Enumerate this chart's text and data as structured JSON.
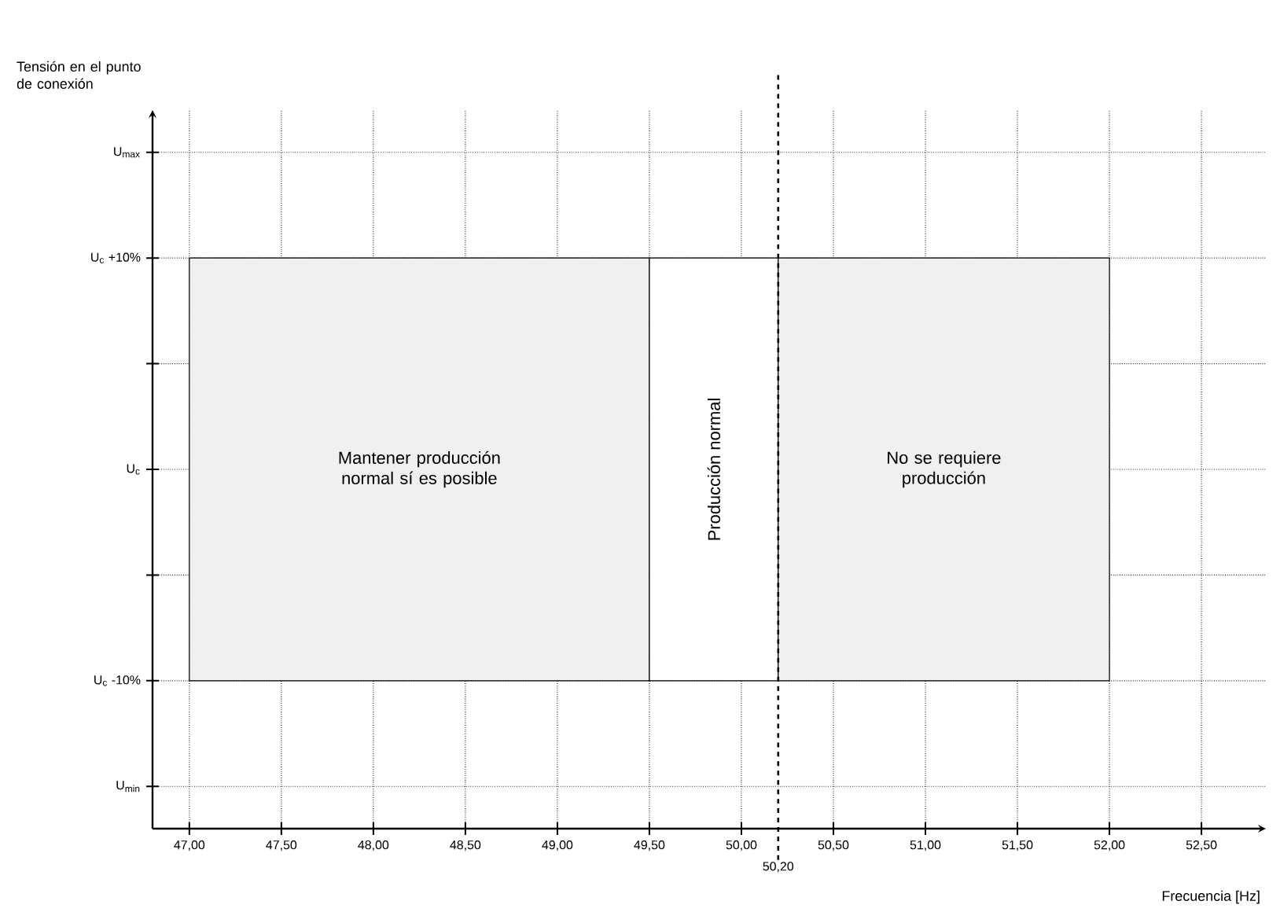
{
  "chart_data": {
    "type": "histogram",
    "xlabel": "Frecuencia [Hz]",
    "ylabel": "Tensión en el punto de conexión",
    "xlim": [
      46.8,
      52.85
    ],
    "ylim": [
      -17,
      17
    ],
    "xticks": [
      {
        "value": 47,
        "label": "47,00"
      },
      {
        "value": 47.5,
        "label": "47,50"
      },
      {
        "value": 48,
        "label": "48,00"
      },
      {
        "value": 48.5,
        "label": "48,50"
      },
      {
        "value": 49,
        "label": "49,00"
      },
      {
        "value": 49.5,
        "label": "49,50"
      },
      {
        "value": 50,
        "label": "50,00"
      },
      {
        "value": 50.5,
        "label": "50,50"
      },
      {
        "value": 51,
        "label": "51,00"
      },
      {
        "value": 51.5,
        "label": "51,50"
      },
      {
        "value": 52,
        "label": "52,00"
      },
      {
        "value": 52.5,
        "label": "52,50"
      }
    ],
    "yticks": [
      {
        "value": -15,
        "label": "U$_{min}$"
      },
      {
        "value": -10,
        "label": "U$_{c}$ -10%"
      },
      {
        "value": -5,
        "label": null
      },
      {
        "value": 0,
        "label": "U$_{c}$"
      },
      {
        "value": 5,
        "label": null
      },
      {
        "value": 10,
        "label": "U$_{c}$ +10%"
      },
      {
        "value": 15,
        "label": "U$_{max}$"
      }
    ],
    "grid": true,
    "bins": [
      47,
      49.5,
      50.2,
      52
    ],
    "values": [
      20,
      20,
      20
    ],
    "base": [
      -10,
      -10,
      -10
    ],
    "colors": [
      "#f0f0f0",
      "#ffffff",
      "#f0f0f0"
    ],
    "annotations": [
      "Mantener producción normal sí es posible",
      "Producción normal",
      "No se requiere producción"
    ],
    "ref_lines": [
      {
        "axis": "x",
        "value": 50.2,
        "label": "50,20",
        "line_style": "dashed"
      }
    ]
  }
}
